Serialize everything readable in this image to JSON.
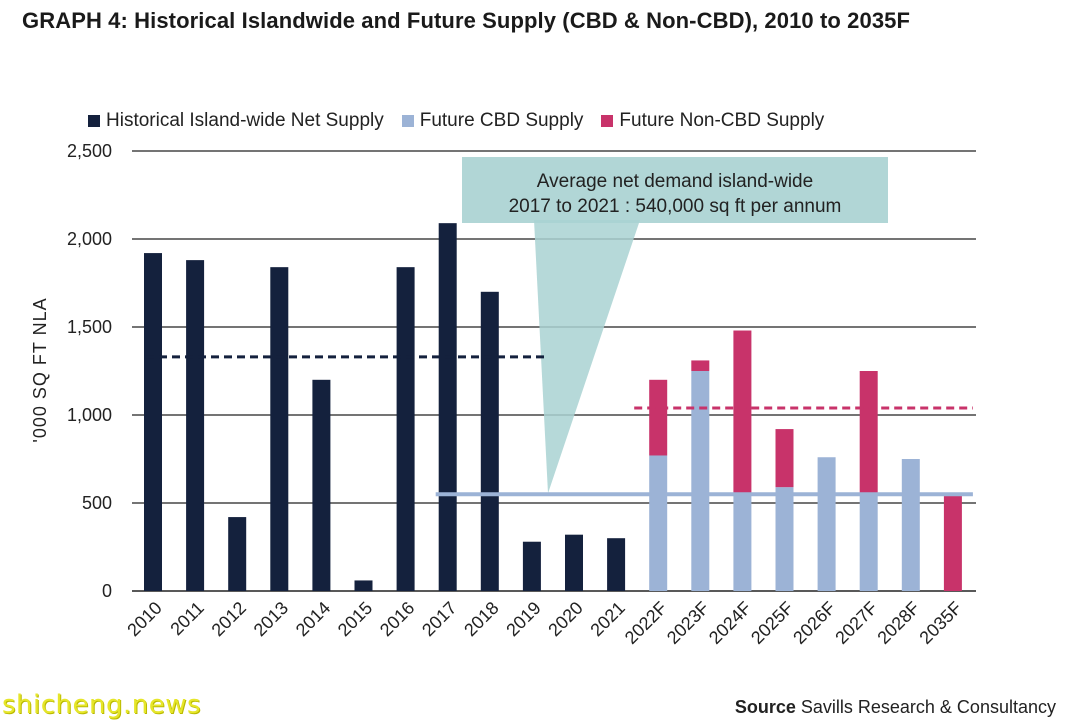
{
  "title": "GRAPH 4: Historical Islandwide and Future Supply (CBD & Non-CBD), 2010 to 2035F",
  "source": {
    "label": "Source",
    "text": "Savills Research & Consultancy"
  },
  "watermark": "shicheng.news",
  "colors": {
    "historical": "#14213d",
    "cbd": "#9cb3d6",
    "noncbd": "#c8336a",
    "callout": "#a9d2d2",
    "grid": "#222222"
  },
  "chart_data": {
    "type": "bar",
    "ylabel": "'000 SQ FT NLA",
    "ylim": [
      0,
      2500
    ],
    "yticks": [
      0,
      500,
      1000,
      1500,
      2000,
      2500
    ],
    "ytick_labels": [
      "0",
      "500",
      "1,000",
      "1,500",
      "2,000",
      "2,500"
    ],
    "categories": [
      "2010",
      "2011",
      "2012",
      "2013",
      "2014",
      "2015",
      "2016",
      "2017",
      "2018",
      "2019",
      "2020",
      "2021",
      "2022F",
      "2023F",
      "2024F",
      "2025F",
      "2026F",
      "2027F",
      "2028F",
      "2035F"
    ],
    "series": [
      {
        "name": "Historical Island-wide Net Supply",
        "values": [
          1920,
          1880,
          420,
          1840,
          1200,
          60,
          1840,
          2090,
          1700,
          280,
          320,
          300,
          0,
          0,
          0,
          0,
          0,
          0,
          0,
          0
        ]
      },
      {
        "name": "Future CBD Supply",
        "values": [
          0,
          0,
          0,
          0,
          0,
          0,
          0,
          0,
          0,
          0,
          0,
          0,
          770,
          1250,
          550,
          590,
          760,
          540,
          750,
          0
        ]
      },
      {
        "name": "Future Non-CBD Supply",
        "values": [
          0,
          0,
          0,
          0,
          0,
          0,
          0,
          0,
          0,
          0,
          0,
          0,
          430,
          60,
          930,
          330,
          0,
          710,
          0,
          540
        ]
      }
    ],
    "reference_lines": [
      {
        "value": 1330,
        "from": "2010",
        "to": "2019",
        "style": "dashed",
        "series": "Historical Island-wide Net Supply"
      },
      {
        "value": 1040,
        "from": "2022F",
        "to": "2035F",
        "style": "dashed",
        "series": "Future Non-CBD Supply"
      },
      {
        "value": 550,
        "from": "2017",
        "to": "2035F",
        "style": "solid",
        "series": "Future CBD Supply"
      }
    ],
    "annotation": {
      "lines": [
        "Average net demand island-wide",
        "2017 to 2021 : 540,000 sq ft per annum"
      ]
    }
  }
}
